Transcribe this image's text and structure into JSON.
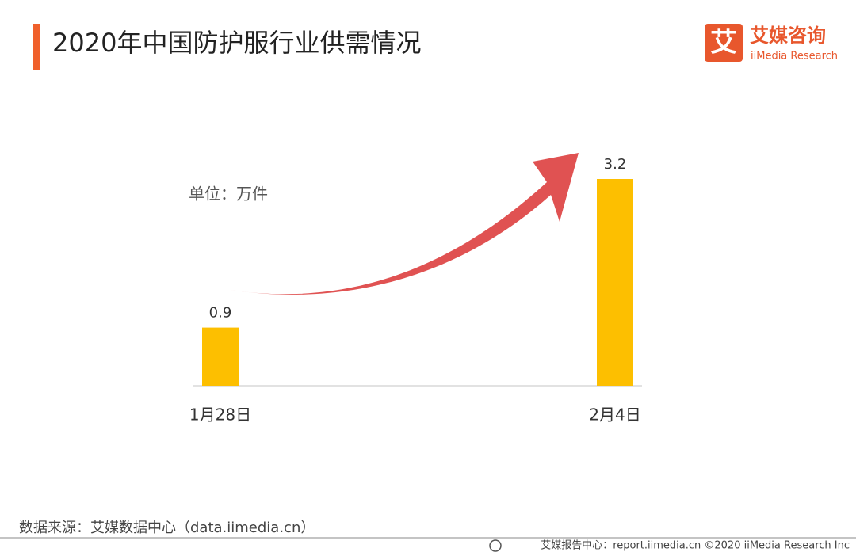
{
  "chart_data": {
    "type": "bar",
    "title": "2020年中国防护服行业供需情况",
    "unit_label": "单位：万件",
    "categories": [
      "1月28日",
      "2月4日"
    ],
    "values": [
      0.9,
      3.2
    ],
    "color": "#fdbf00"
  },
  "logo": {
    "name": "艾媒咨询",
    "subtitle": "iiMedia Research",
    "icon_text": "艾"
  },
  "source": "数据来源：艾媒数据中心（data.iimedia.cn）",
  "footer": "艾媒报告中心：report.iimedia.cn  ©2020  iiMedia Research  Inc"
}
